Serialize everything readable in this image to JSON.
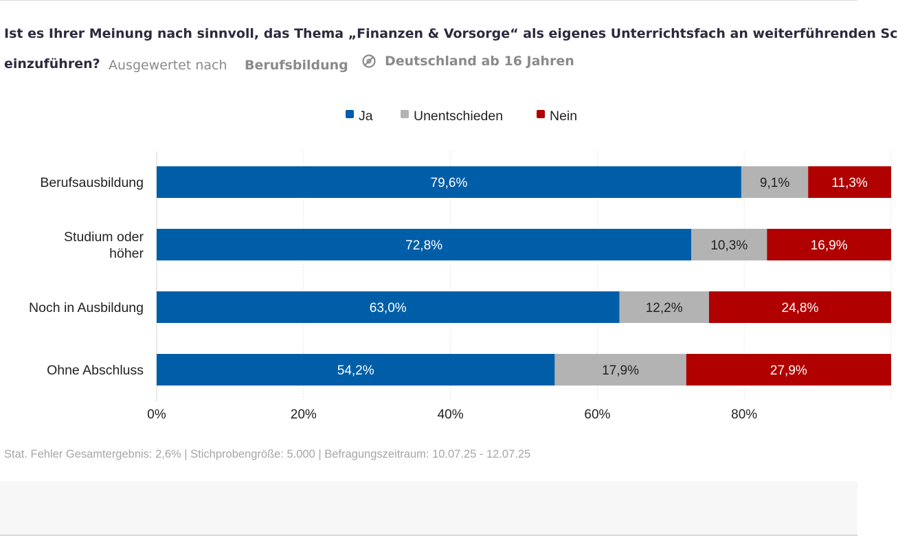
{
  "header": {
    "title_line1": "Ist es Ihrer Meinung nach sinnvoll, das Thema „Finanzen & Vorsorge“ als eigenes Unterrichtsfach an weiterführenden Sc",
    "title_line2": "einzuführen?",
    "evaluated_by_label": "Ausgewertet nach",
    "evaluated_by_value": "Berufsbildung",
    "population": "Deutschland ab 16 Jahren"
  },
  "footer": {
    "note": "Stat. Fehler Gesamtergebnis: 2,6% | Stichprobengröße: 5.000 | Befragungszeitraum: 10.07.25 - 12.07.25"
  },
  "colors": {
    "ja": "#005ea8",
    "unentschieden": "#b3b3b3",
    "nein": "#b00000"
  },
  "chart_data": {
    "type": "bar",
    "orientation": "horizontal",
    "stacked": true,
    "categories": [
      "Berufsausbildung",
      "Studium oder höher",
      "Noch in Ausbildung",
      "Ohne Abschluss"
    ],
    "category_lines": [
      [
        "Berufsausbildung"
      ],
      [
        "Studium oder",
        "höher"
      ],
      [
        "Noch in Ausbildung"
      ],
      [
        "Ohne Abschluss"
      ]
    ],
    "series": [
      {
        "name": "Ja",
        "key": "ja",
        "values": [
          79.6,
          72.8,
          63.0,
          54.2
        ],
        "labels": [
          "79,6%",
          "72,8%",
          "63,0%",
          "54,2%"
        ]
      },
      {
        "name": "Unentschieden",
        "key": "unentschieden",
        "values": [
          9.1,
          10.3,
          12.2,
          17.9
        ],
        "labels": [
          "9,1%",
          "10,3%",
          "12,2%",
          "17,9%"
        ]
      },
      {
        "name": "Nein",
        "key": "nein",
        "values": [
          11.3,
          16.9,
          24.8,
          27.9
        ],
        "labels": [
          "11,3%",
          "16,9%",
          "24,8%",
          "27,9%"
        ]
      }
    ],
    "xlim": [
      0,
      100
    ],
    "xticks": [
      0,
      20,
      40,
      60,
      80
    ],
    "xtick_labels": [
      "0%",
      "20%",
      "40%",
      "60%",
      "80%"
    ],
    "legend_position": "top-center",
    "grid": true
  }
}
